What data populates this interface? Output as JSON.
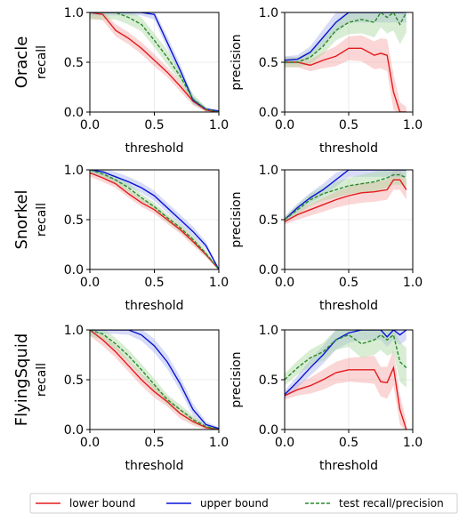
{
  "colors": {
    "lower": "#e41a1c",
    "upper": "#0a14d8",
    "test": "#2a8a2a",
    "lower_fill": "#f7a5a5",
    "upper_fill": "#a9b1ee",
    "test_fill": "#a8d8a0"
  },
  "legend": {
    "placement": "bottom-center",
    "items": [
      {
        "key": "lower",
        "label": "lower bound",
        "style": "solid"
      },
      {
        "key": "upper",
        "label": "upper bound",
        "style": "solid"
      },
      {
        "key": "test",
        "label": "test recall/precision",
        "style": "dashed"
      }
    ]
  },
  "chart_data": [
    {
      "type": "line",
      "row_label": "Oracle",
      "xlabel": "threshold",
      "ylabel": "recall",
      "xlim": [
        0,
        1
      ],
      "ylim": [
        0,
        1
      ],
      "xticks": [
        "0.0",
        "0.5",
        "1.0"
      ],
      "yticks": [
        "0.0",
        "0.5",
        "1.0"
      ],
      "x": [
        0,
        0.1,
        0.2,
        0.3,
        0.4,
        0.5,
        0.6,
        0.7,
        0.8,
        0.9,
        1.0
      ],
      "series": [
        {
          "key": "lower",
          "values": [
            1.0,
            0.98,
            0.82,
            0.74,
            0.64,
            0.52,
            0.4,
            0.26,
            0.11,
            0.02,
            0.0
          ],
          "band": [
            0.06,
            0.06,
            0.06,
            0.06,
            0.06,
            0.06,
            0.05,
            0.05,
            0.04,
            0.02,
            0.0
          ]
        },
        {
          "key": "upper",
          "values": [
            1.0,
            1.0,
            1.0,
            1.0,
            1.0,
            0.98,
            0.7,
            0.42,
            0.12,
            0.03,
            0.01
          ],
          "band": [
            0.03,
            0.03,
            0.03,
            0.03,
            0.03,
            0.05,
            0.06,
            0.06,
            0.04,
            0.02,
            0.01
          ]
        },
        {
          "key": "test",
          "values": [
            1.0,
            1.0,
            1.0,
            0.95,
            0.88,
            0.72,
            0.55,
            0.36,
            0.13,
            0.03,
            0.0
          ],
          "band": [
            0.07,
            0.07,
            0.07,
            0.07,
            0.07,
            0.07,
            0.07,
            0.06,
            0.05,
            0.02,
            0.0
          ]
        }
      ]
    },
    {
      "type": "line",
      "row_label": "",
      "xlabel": "threshold",
      "ylabel": "precision",
      "xlim": [
        0,
        1
      ],
      "ylim": [
        0,
        1
      ],
      "xticks": [
        "0.0",
        "0.5",
        "1.0"
      ],
      "yticks": [
        "0.0",
        "0.5",
        "1.0"
      ],
      "x": [
        0,
        0.1,
        0.2,
        0.3,
        0.4,
        0.5,
        0.6,
        0.7,
        0.75,
        0.8,
        0.85,
        0.9,
        0.95
      ],
      "series": [
        {
          "key": "lower",
          "values": [
            0.5,
            0.5,
            0.47,
            0.52,
            0.56,
            0.64,
            0.64,
            0.57,
            0.59,
            0.57,
            0.2,
            0.0,
            0.0
          ],
          "band": [
            0.05,
            0.05,
            0.06,
            0.08,
            0.1,
            0.12,
            0.13,
            0.14,
            0.15,
            0.16,
            0.18,
            0.1,
            0.05
          ]
        },
        {
          "key": "upper",
          "values": [
            0.52,
            0.53,
            0.6,
            0.75,
            0.9,
            1.0,
            1.0,
            1.0,
            1.0,
            1.0,
            1.0,
            1.0,
            1.0
          ],
          "band": [
            0.04,
            0.04,
            0.06,
            0.08,
            0.1,
            0.1,
            0.1,
            0.1,
            0.1,
            0.1,
            0.1,
            0.1,
            0.1
          ]
        },
        {
          "key": "test",
          "values": [
            0.5,
            0.5,
            0.55,
            0.66,
            0.82,
            0.9,
            0.93,
            0.9,
            1.0,
            0.95,
            1.0,
            0.88,
            1.0
          ],
          "band": [
            0.05,
            0.05,
            0.07,
            0.08,
            0.1,
            0.12,
            0.14,
            0.15,
            0.15,
            0.16,
            0.18,
            0.2,
            0.2
          ]
        }
      ]
    },
    {
      "type": "line",
      "row_label": "Snorkel",
      "xlabel": "threshold",
      "ylabel": "recall",
      "xlim": [
        0,
        1
      ],
      "ylim": [
        0,
        1
      ],
      "xticks": [
        "0.0",
        "0.5",
        "1.0"
      ],
      "yticks": [
        "0.0",
        "0.5",
        "1.0"
      ],
      "x": [
        0,
        0.1,
        0.2,
        0.3,
        0.4,
        0.5,
        0.6,
        0.7,
        0.8,
        0.9,
        1.0
      ],
      "series": [
        {
          "key": "lower",
          "values": [
            0.97,
            0.92,
            0.86,
            0.76,
            0.67,
            0.6,
            0.5,
            0.4,
            0.28,
            0.15,
            0.0
          ],
          "band": [
            0.04,
            0.04,
            0.04,
            0.04,
            0.04,
            0.04,
            0.04,
            0.04,
            0.04,
            0.03,
            0.0
          ]
        },
        {
          "key": "upper",
          "values": [
            1.0,
            0.98,
            0.93,
            0.88,
            0.82,
            0.74,
            0.62,
            0.5,
            0.38,
            0.24,
            0.0
          ],
          "band": [
            0.04,
            0.04,
            0.05,
            0.05,
            0.05,
            0.05,
            0.05,
            0.05,
            0.05,
            0.04,
            0.0
          ]
        },
        {
          "key": "test",
          "values": [
            1.0,
            0.96,
            0.9,
            0.82,
            0.72,
            0.63,
            0.52,
            0.42,
            0.3,
            0.16,
            0.0
          ],
          "band": [
            0.04,
            0.04,
            0.04,
            0.04,
            0.04,
            0.04,
            0.04,
            0.04,
            0.04,
            0.03,
            0.0
          ]
        }
      ]
    },
    {
      "type": "line",
      "row_label": "",
      "xlabel": "threshold",
      "ylabel": "precision",
      "xlim": [
        0,
        1
      ],
      "ylim": [
        0,
        1
      ],
      "xticks": [
        "0.0",
        "0.5",
        "1.0"
      ],
      "yticks": [
        "0.0",
        "0.5",
        "1.0"
      ],
      "x": [
        0,
        0.1,
        0.2,
        0.3,
        0.4,
        0.5,
        0.6,
        0.7,
        0.8,
        0.85,
        0.9,
        0.95
      ],
      "series": [
        {
          "key": "lower",
          "values": [
            0.48,
            0.55,
            0.6,
            0.65,
            0.7,
            0.74,
            0.77,
            0.78,
            0.8,
            0.9,
            0.9,
            0.8
          ],
          "band": [
            0.03,
            0.05,
            0.06,
            0.07,
            0.08,
            0.09,
            0.1,
            0.1,
            0.1,
            0.1,
            0.1,
            0.1
          ]
        },
        {
          "key": "upper",
          "values": [
            0.5,
            0.62,
            0.72,
            0.8,
            0.9,
            1.0,
            1.0,
            1.0,
            1.0,
            1.0,
            1.0,
            1.0
          ],
          "band": [
            0.03,
            0.04,
            0.05,
            0.06,
            0.07,
            0.07,
            0.07,
            0.07,
            0.07,
            0.07,
            0.07,
            0.07
          ]
        },
        {
          "key": "test",
          "values": [
            0.5,
            0.6,
            0.7,
            0.76,
            0.8,
            0.84,
            0.86,
            0.88,
            0.92,
            0.95,
            0.95,
            0.92
          ],
          "band": [
            0.03,
            0.05,
            0.06,
            0.07,
            0.08,
            0.08,
            0.09,
            0.1,
            0.1,
            0.1,
            0.1,
            0.1
          ]
        }
      ]
    },
    {
      "type": "line",
      "row_label": "FlyingSquid",
      "xlabel": "threshold",
      "ylabel": "recall",
      "xlim": [
        0,
        1
      ],
      "ylim": [
        0,
        1
      ],
      "xticks": [
        "0.0",
        "0.5",
        "1.0"
      ],
      "yticks": [
        "0.0",
        "0.5",
        "1.0"
      ],
      "x": [
        0,
        0.1,
        0.2,
        0.3,
        0.4,
        0.5,
        0.6,
        0.7,
        0.8,
        0.9,
        1.0
      ],
      "series": [
        {
          "key": "lower",
          "values": [
            1.0,
            0.9,
            0.78,
            0.64,
            0.5,
            0.38,
            0.28,
            0.16,
            0.08,
            0.02,
            0.0
          ],
          "band": [
            0.06,
            0.06,
            0.06,
            0.06,
            0.06,
            0.06,
            0.05,
            0.05,
            0.04,
            0.02,
            0.0
          ]
        },
        {
          "key": "upper",
          "values": [
            1.0,
            1.0,
            1.0,
            1.0,
            0.95,
            0.84,
            0.68,
            0.46,
            0.2,
            0.05,
            0.01
          ],
          "band": [
            0.04,
            0.04,
            0.04,
            0.05,
            0.06,
            0.07,
            0.07,
            0.07,
            0.06,
            0.03,
            0.01
          ]
        },
        {
          "key": "test",
          "values": [
            1.0,
            0.96,
            0.86,
            0.74,
            0.6,
            0.45,
            0.3,
            0.2,
            0.1,
            0.03,
            0.0
          ],
          "band": [
            0.06,
            0.06,
            0.06,
            0.06,
            0.06,
            0.06,
            0.05,
            0.05,
            0.04,
            0.02,
            0.0
          ]
        }
      ]
    },
    {
      "type": "line",
      "row_label": "",
      "xlabel": "threshold",
      "ylabel": "precision",
      "xlim": [
        0,
        1
      ],
      "ylim": [
        0,
        1
      ],
      "xticks": [
        "0.0",
        "0.5",
        "1.0"
      ],
      "yticks": [
        "0.0",
        "0.5",
        "1.0"
      ],
      "x": [
        0,
        0.1,
        0.2,
        0.3,
        0.4,
        0.5,
        0.6,
        0.7,
        0.75,
        0.8,
        0.85,
        0.9,
        0.95
      ],
      "series": [
        {
          "key": "lower",
          "values": [
            0.34,
            0.4,
            0.44,
            0.5,
            0.57,
            0.6,
            0.6,
            0.6,
            0.48,
            0.47,
            0.62,
            0.2,
            0.0
          ],
          "band": [
            0.04,
            0.06,
            0.08,
            0.1,
            0.11,
            0.12,
            0.13,
            0.14,
            0.15,
            0.16,
            0.18,
            0.15,
            0.08
          ]
        },
        {
          "key": "upper",
          "values": [
            0.35,
            0.48,
            0.62,
            0.75,
            0.9,
            0.97,
            1.0,
            1.0,
            1.0,
            0.93,
            1.0,
            0.95,
            1.0
          ],
          "band": [
            0.04,
            0.06,
            0.08,
            0.09,
            0.1,
            0.1,
            0.1,
            0.1,
            0.1,
            0.1,
            0.1,
            0.1,
            0.1
          ]
        },
        {
          "key": "test",
          "values": [
            0.5,
            0.62,
            0.72,
            0.78,
            0.9,
            0.95,
            0.86,
            0.9,
            0.95,
            0.9,
            0.95,
            0.68,
            0.62
          ],
          "band": [
            0.06,
            0.07,
            0.08,
            0.09,
            0.1,
            0.12,
            0.14,
            0.15,
            0.15,
            0.16,
            0.18,
            0.2,
            0.2
          ]
        }
      ]
    }
  ]
}
